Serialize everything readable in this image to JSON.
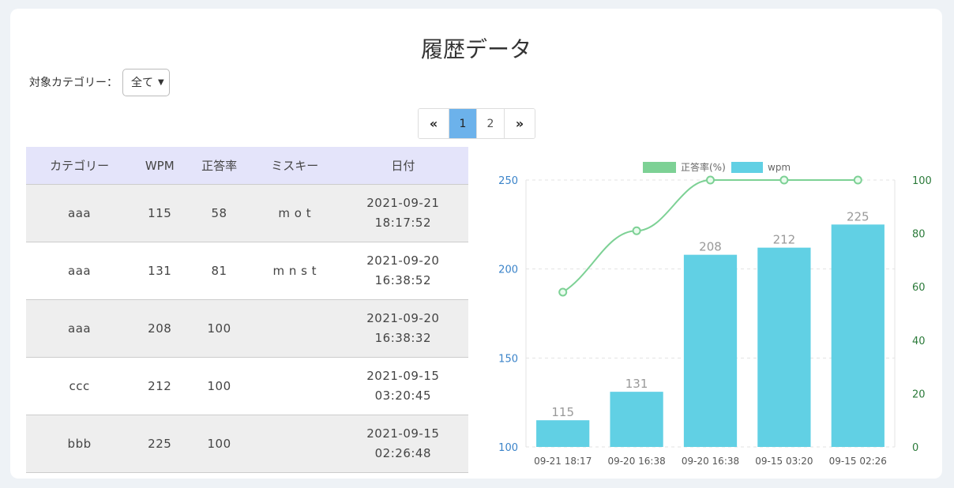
{
  "page": {
    "title": "履歴データ",
    "filter_label": "対象カテゴリー：",
    "filter_value": "全て"
  },
  "pagination": {
    "prev": "«",
    "next": "»",
    "pages": [
      "1",
      "2"
    ],
    "active": "1"
  },
  "table": {
    "headers": [
      "カテゴリー",
      "WPM",
      "正答率",
      "ミスキー",
      "日付"
    ],
    "rows": [
      {
        "category": "aaa",
        "wpm": "115",
        "accuracy": "58",
        "miss": "m o t",
        "date": "2021-09-21",
        "time": "18:17:52"
      },
      {
        "category": "aaa",
        "wpm": "131",
        "accuracy": "81",
        "miss": "m n s t",
        "date": "2021-09-20",
        "time": "16:38:52"
      },
      {
        "category": "aaa",
        "wpm": "208",
        "accuracy": "100",
        "miss": "",
        "date": "2021-09-20",
        "time": "16:38:32"
      },
      {
        "category": "ccc",
        "wpm": "212",
        "accuracy": "100",
        "miss": "",
        "date": "2021-09-15",
        "time": "03:20:45"
      },
      {
        "category": "bbb",
        "wpm": "225",
        "accuracy": "100",
        "miss": "",
        "date": "2021-09-15",
        "time": "02:26:48"
      }
    ]
  },
  "chart_data": {
    "type": "bar",
    "categories": [
      "09-21 18:17",
      "09-20 16:38",
      "09-20 16:38",
      "09-15 03:20",
      "09-15 02:26"
    ],
    "series": [
      {
        "name": "wpm",
        "type": "bar",
        "axis": "left",
        "values": [
          115,
          131,
          208,
          212,
          225
        ],
        "color": "#61d0e4"
      },
      {
        "name": "正答率(%)",
        "type": "line",
        "axis": "right",
        "values": [
          58,
          81,
          100,
          100,
          100
        ],
        "color": "#7dd195"
      }
    ],
    "y_left": {
      "min": 100,
      "max": 250,
      "ticks": [
        100,
        150,
        200,
        250
      ],
      "color": "#3a83c9"
    },
    "y_right": {
      "min": 0,
      "max": 100,
      "ticks": [
        0,
        20,
        40,
        60,
        80,
        100
      ],
      "color": "#2b7a3a"
    },
    "grid": true,
    "legend": "top-center",
    "data_labels": true
  }
}
